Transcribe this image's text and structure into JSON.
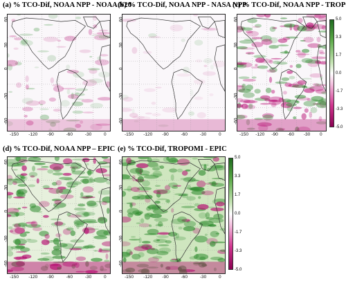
{
  "panels": [
    {
      "title": "(a) % TCO-Dif, NOAA NPP - NOAA N20",
      "style": "light"
    },
    {
      "title": "(b) % TCO-Dif, NOAA NPP - NASA NPP",
      "style": "faint"
    },
    {
      "title": "(c) % TCO-Dif, NOAA NPP - TROPOMI",
      "style": "medium"
    },
    {
      "title": "(d) % TCO-Dif, NOAA NPP – EPIC",
      "style": "strong"
    },
    {
      "title": "(e) % TCO-Dif, TROPOMI - EPIC",
      "style": "green"
    }
  ],
  "x_ticks": [
    "-150",
    "-120",
    "-90",
    "-60",
    "-30",
    "0"
  ],
  "y_ticks": [
    "60",
    "30",
    "0",
    "-30",
    "-60"
  ],
  "colorbar_ticks": [
    "5.0",
    "3.3",
    "1.7",
    "0.0",
    "-1.7",
    "-3.3",
    "-5.0"
  ],
  "colors": {
    "positive": "#2e8b2e",
    "negative": "#b3006b",
    "neutral": "#ffffff"
  }
}
